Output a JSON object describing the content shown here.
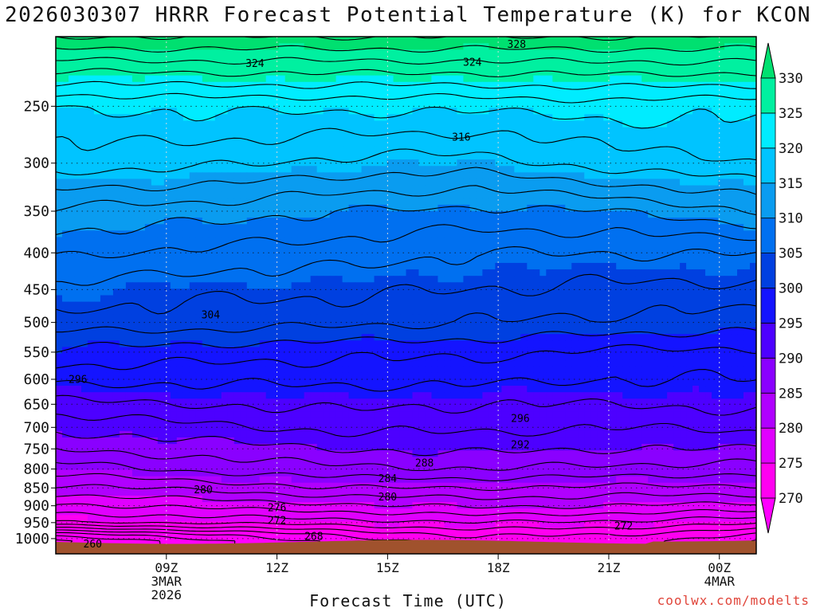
{
  "chart_data": {
    "type": "heatmap",
    "title": "2026030307 HRRR Forecast Potential Temperature (K) for KCON",
    "xlabel": "Forecast Time (UTC)",
    "ylabel": "",
    "y_scale": "log-pressure",
    "y_axis_inverted": true,
    "y_range": [
      200,
      1050
    ],
    "y_ticks": [
      250,
      300,
      350,
      400,
      450,
      500,
      550,
      600,
      650,
      700,
      750,
      800,
      850,
      900,
      950,
      1000
    ],
    "y_tick_labels": [
      "250",
      "300",
      "350",
      "400",
      "450",
      "500",
      "550",
      "600",
      "650",
      "700",
      "750",
      "800",
      "850",
      "900",
      "950",
      "1000"
    ],
    "x_range": [
      6,
      25
    ],
    "x_ticks": [
      {
        "x": 9,
        "lines": [
          "09Z",
          "3MAR",
          "2026"
        ]
      },
      {
        "x": 12,
        "lines": [
          "12Z"
        ]
      },
      {
        "x": 15,
        "lines": [
          "15Z"
        ]
      },
      {
        "x": 18,
        "lines": [
          "18Z"
        ]
      },
      {
        "x": 21,
        "lines": [
          "21Z"
        ]
      },
      {
        "x": 24,
        "lines": [
          "00Z",
          "4MAR"
        ]
      }
    ],
    "grid": true,
    "colorbar": {
      "levels": [
        270,
        275,
        280,
        285,
        290,
        295,
        300,
        305,
        310,
        315,
        320,
        325,
        330
      ],
      "labels": [
        "270",
        "275",
        "280",
        "285",
        "290",
        "295",
        "300",
        "305",
        "310",
        "315",
        "320",
        "325",
        "330"
      ],
      "colors": [
        "#ff00ff",
        "#ff00f0",
        "#e000ff",
        "#b000ff",
        "#8a00ff",
        "#4d00ff",
        "#1414ff",
        "#0040e0",
        "#0070f0",
        "#0a9cf0",
        "#00c4ff",
        "#00ecff",
        "#00f0a0",
        "#00e070"
      ],
      "extends": "both"
    },
    "surface_color": "#a0522d",
    "contour_interval": 2,
    "theta_profiles": [
      {
        "pressure": 200,
        "theta": [
          332,
          332,
          332,
          332,
          332,
          332
        ]
      },
      {
        "pressure": 250,
        "theta": [
          320,
          320.5,
          320.5,
          320.5,
          321,
          320.5
        ]
      },
      {
        "pressure": 300,
        "theta": [
          317,
          316.5,
          315.5,
          315,
          317,
          318
        ]
      },
      {
        "pressure": 350,
        "theta": [
          311.5,
          311,
          310,
          309.5,
          310,
          312
        ]
      },
      {
        "pressure": 400,
        "theta": [
          308.5,
          307.5,
          307,
          306,
          306,
          306
        ]
      },
      {
        "pressure": 450,
        "theta": [
          305.5,
          304.5,
          304.5,
          304,
          303.5,
          303.5
        ]
      },
      {
        "pressure": 500,
        "theta": [
          303,
          303,
          302.5,
          302,
          301.5,
          301
        ]
      },
      {
        "pressure": 550,
        "theta": [
          299.5,
          299,
          298.5,
          298.5,
          297.5,
          297.5
        ]
      },
      {
        "pressure": 600,
        "theta": [
          296.5,
          296.5,
          296.5,
          296.5,
          296,
          296
        ]
      },
      {
        "pressure": 650,
        "theta": [
          293.5,
          294,
          294.5,
          294,
          294,
          294.5
        ]
      },
      {
        "pressure": 700,
        "theta": [
          290.5,
          291.5,
          292.5,
          292.5,
          292,
          292.5
        ]
      },
      {
        "pressure": 750,
        "theta": [
          288,
          289,
          290,
          290.5,
          290,
          290
        ]
      },
      {
        "pressure": 800,
        "theta": [
          285,
          286.5,
          287.5,
          288,
          287.5,
          287
        ]
      },
      {
        "pressure": 850,
        "theta": [
          281.5,
          282.5,
          284,
          284,
          283.5,
          283.5
        ]
      },
      {
        "pressure": 900,
        "theta": [
          277.5,
          278.5,
          279.5,
          280.5,
          280,
          279.5
        ]
      },
      {
        "pressure": 950,
        "theta": [
          274,
          274.5,
          275,
          276,
          275.5,
          274.5
        ]
      },
      {
        "pressure": 1000,
        "theta": [
          262,
          265,
          269,
          271,
          271,
          268
        ]
      }
    ],
    "contour_labels": [
      {
        "value": "328",
        "x": 18.5,
        "p": 205
      },
      {
        "value": "324",
        "x": 11.4,
        "p": 218
      },
      {
        "value": "324",
        "x": 17.3,
        "p": 217
      },
      {
        "value": "316",
        "x": 17.0,
        "p": 276
      },
      {
        "value": "304",
        "x": 10.2,
        "p": 488
      },
      {
        "value": "296",
        "x": 6.6,
        "p": 600
      },
      {
        "value": "296",
        "x": 18.6,
        "p": 680
      },
      {
        "value": "292",
        "x": 18.6,
        "p": 740
      },
      {
        "value": "288",
        "x": 16.0,
        "p": 785
      },
      {
        "value": "284",
        "x": 15.0,
        "p": 825
      },
      {
        "value": "280",
        "x": 10.0,
        "p": 855
      },
      {
        "value": "280",
        "x": 15.0,
        "p": 875
      },
      {
        "value": "276",
        "x": 12.0,
        "p": 905
      },
      {
        "value": "272",
        "x": 12.0,
        "p": 943
      },
      {
        "value": "272",
        "x": 21.4,
        "p": 960
      },
      {
        "value": "268",
        "x": 13.0,
        "p": 993
      },
      {
        "value": "260",
        "x": 7.0,
        "p": 1017
      }
    ]
  },
  "credit": "coolwx.com/modelts"
}
